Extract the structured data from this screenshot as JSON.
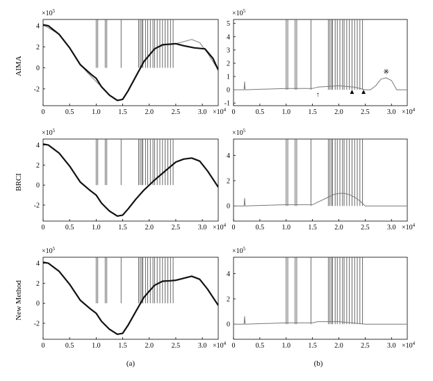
{
  "chart_data": [
    {
      "type": "line",
      "panel": "(a)",
      "row_label": "AIMA",
      "y_multiplier": "×10",
      "y_multiplier_exp": "5",
      "x_multiplier": "×10",
      "x_multiplier_exp": "4",
      "xlim": [
        0,
        3.3
      ],
      "ylim": [
        -3.6,
        4.6
      ],
      "x_ticks": [
        "0",
        "0.5",
        "1.0",
        "1.5",
        "2.0",
        "2.5",
        "3.0"
      ],
      "y_ticks": [
        "-2",
        "0",
        "2",
        "4"
      ],
      "series": [
        {
          "role": "reference-thin",
          "x": [
            0,
            0.3,
            0.5,
            0.7,
            0.9,
            1.1,
            1.25,
            1.4,
            1.5,
            1.6,
            1.75,
            1.9,
            2.1,
            2.3,
            2.5,
            2.65,
            2.8,
            2.95,
            3.1,
            3.3
          ],
          "y": [
            4.1,
            3.2,
            1.9,
            0.3,
            -0.8,
            -1.8,
            -2.6,
            -3.1,
            -3.0,
            -2.2,
            -0.8,
            0.6,
            1.8,
            2.2,
            2.3,
            2.5,
            2.7,
            2.4,
            1.4,
            -0.2
          ]
        },
        {
          "role": "estimate-thick",
          "x": [
            0,
            0.1,
            0.3,
            0.5,
            0.7,
            0.9,
            1.0,
            1.1,
            1.25,
            1.4,
            1.5,
            1.6,
            1.75,
            1.9,
            2.0,
            2.1,
            2.25,
            2.4,
            2.5,
            2.65,
            2.85,
            3.05,
            3.2,
            3.3
          ],
          "y": [
            4.1,
            4.0,
            3.2,
            1.9,
            0.3,
            -0.6,
            -1.0,
            -1.8,
            -2.6,
            -3.1,
            -3.0,
            -2.2,
            -0.8,
            0.6,
            1.2,
            1.8,
            2.2,
            2.25,
            2.3,
            2.1,
            1.9,
            1.8,
            0.9,
            -0.2
          ]
        }
      ],
      "spikes_x": [
        1.0,
        1.03,
        1.17,
        1.2,
        1.47,
        1.8,
        1.83,
        1.86,
        1.88,
        1.93,
        1.97,
        2.02,
        2.07,
        2.1,
        2.15,
        2.2,
        2.25,
        2.3,
        2.35,
        2.4,
        2.45
      ]
    },
    {
      "type": "line",
      "panel": "(b)",
      "row_label": "AIMA",
      "y_multiplier": "×10",
      "y_multiplier_exp": "5",
      "x_multiplier": "×10",
      "x_multiplier_exp": "4",
      "xlim": [
        0,
        3.3
      ],
      "ylim": [
        -1.2,
        5.3
      ],
      "x_ticks": [
        "0",
        "0.5",
        "1.0",
        "1.5",
        "2.0",
        "2.5",
        "3.0"
      ],
      "y_ticks": [
        "-1",
        "0",
        "1",
        "2",
        "3",
        "4",
        "5"
      ],
      "series": [
        {
          "role": "residual",
          "x": [
            0,
            0.2,
            0.21,
            0.22,
            1.0,
            1.5,
            1.6,
            2.0,
            2.3,
            2.5,
            2.6,
            2.7,
            2.8,
            2.9,
            3.0,
            3.1,
            3.3
          ],
          "y": [
            0,
            0,
            0.6,
            0,
            0.1,
            0.1,
            0.2,
            0.3,
            0.2,
            0,
            0,
            0.3,
            0.8,
            0.9,
            0.7,
            0,
            0
          ]
        }
      ],
      "spikes_x": [
        1.0,
        1.03,
        1.17,
        1.2,
        1.47,
        1.8,
        1.83,
        1.86,
        1.88,
        1.93,
        1.97,
        2.02,
        2.07,
        2.1,
        2.15,
        2.2,
        2.25,
        2.3,
        2.35,
        2.4,
        2.45
      ],
      "annotations": [
        {
          "symbol": "↑",
          "x": 1.6,
          "y": -0.3
        },
        {
          "symbol": "▲",
          "x": 2.25,
          "y": -0.1
        },
        {
          "symbol": "▲",
          "x": 2.47,
          "y": -0.1
        },
        {
          "symbol": "※",
          "x": 2.9,
          "y": 1.4
        }
      ]
    },
    {
      "type": "line",
      "panel": "(a)",
      "row_label": "BRCI",
      "y_multiplier": "×10",
      "y_multiplier_exp": "5",
      "x_multiplier": "×10",
      "x_multiplier_exp": "4",
      "xlim": [
        0,
        3.3
      ],
      "ylim": [
        -3.6,
        4.6
      ],
      "x_ticks": [
        "0",
        "0.5",
        "1.0",
        "1.5",
        "2.0",
        "2.5",
        "3.0"
      ],
      "y_ticks": [
        "-2",
        "0",
        "2",
        "4"
      ],
      "series": [
        {
          "role": "estimate-thick",
          "x": [
            0,
            0.1,
            0.3,
            0.5,
            0.7,
            0.9,
            1.0,
            1.1,
            1.25,
            1.4,
            1.5,
            1.6,
            1.75,
            1.9,
            2.1,
            2.3,
            2.5,
            2.65,
            2.8,
            2.95,
            3.1,
            3.3
          ],
          "y": [
            4.1,
            4.0,
            3.2,
            1.9,
            0.3,
            -0.6,
            -1.0,
            -1.8,
            -2.6,
            -3.1,
            -3.0,
            -2.4,
            -1.4,
            -0.5,
            0.5,
            1.4,
            2.3,
            2.6,
            2.7,
            2.4,
            1.4,
            -0.2
          ]
        }
      ],
      "spikes_x": [
        1.0,
        1.03,
        1.17,
        1.2,
        1.47,
        1.8,
        1.83,
        1.86,
        1.88,
        1.93,
        1.97,
        2.02,
        2.07,
        2.1,
        2.15,
        2.2,
        2.25,
        2.3,
        2.35,
        2.4,
        2.45
      ]
    },
    {
      "type": "line",
      "panel": "(b)",
      "row_label": "BRCI",
      "y_multiplier": "×10",
      "y_multiplier_exp": "5",
      "x_multiplier": "×10",
      "x_multiplier_exp": "4",
      "xlim": [
        0,
        3.3
      ],
      "ylim": [
        -1.2,
        5.3
      ],
      "x_ticks": [
        "0",
        "0.5",
        "1.0",
        "1.5",
        "2.0",
        "2.5",
        "3.0"
      ],
      "y_ticks": [
        "0",
        "2",
        "4"
      ],
      "series": [
        {
          "role": "residual",
          "x": [
            0,
            0.2,
            0.21,
            0.22,
            1.0,
            1.5,
            1.6,
            1.8,
            1.9,
            2.0,
            2.1,
            2.2,
            2.3,
            2.4,
            2.5,
            3.3
          ],
          "y": [
            0,
            0,
            0.6,
            0,
            0.1,
            0.1,
            0.3,
            0.7,
            0.9,
            1.0,
            1.0,
            0.9,
            0.7,
            0.4,
            0,
            0
          ]
        }
      ],
      "spikes_x": [
        1.0,
        1.03,
        1.17,
        1.2,
        1.47,
        1.8,
        1.83,
        1.86,
        1.88,
        1.93,
        1.97,
        2.02,
        2.07,
        2.1,
        2.15,
        2.2,
        2.25,
        2.3,
        2.35,
        2.4,
        2.45
      ]
    },
    {
      "type": "line",
      "panel": "(a)",
      "row_label": "New Method",
      "y_multiplier": "×10",
      "y_multiplier_exp": "5",
      "x_multiplier": "×10",
      "x_multiplier_exp": "4",
      "xlim": [
        0,
        3.3
      ],
      "ylim": [
        -3.6,
        4.6
      ],
      "x_ticks": [
        "0",
        "0.5",
        "1.0",
        "1.5",
        "2.0",
        "2.5",
        "3.0"
      ],
      "y_ticks": [
        "-2",
        "0",
        "2",
        "4"
      ],
      "series": [
        {
          "role": "estimate-thick",
          "x": [
            0,
            0.1,
            0.3,
            0.5,
            0.7,
            0.9,
            1.0,
            1.1,
            1.25,
            1.4,
            1.5,
            1.6,
            1.75,
            1.9,
            2.0,
            2.1,
            2.25,
            2.4,
            2.5,
            2.65,
            2.8,
            2.95,
            3.1,
            3.3
          ],
          "y": [
            4.1,
            4.0,
            3.2,
            1.9,
            0.3,
            -0.6,
            -1.0,
            -1.8,
            -2.6,
            -3.1,
            -3.0,
            -2.2,
            -0.8,
            0.6,
            1.2,
            1.8,
            2.2,
            2.25,
            2.3,
            2.5,
            2.7,
            2.4,
            1.4,
            -0.2
          ]
        }
      ],
      "spikes_x": [
        1.0,
        1.03,
        1.17,
        1.2,
        1.47,
        1.8,
        1.83,
        1.86,
        1.88,
        1.93,
        1.97,
        2.02,
        2.07,
        2.1,
        2.15,
        2.2,
        2.25,
        2.3,
        2.35,
        2.4,
        2.45
      ]
    },
    {
      "type": "line",
      "panel": "(b)",
      "row_label": "New Method",
      "y_multiplier": "×10",
      "y_multiplier_exp": "5",
      "x_multiplier": "×10",
      "x_multiplier_exp": "4",
      "xlim": [
        0,
        3.3
      ],
      "ylim": [
        -1.2,
        5.3
      ],
      "x_ticks": [
        "0",
        "0.5",
        "1.0",
        "1.5",
        "2.0",
        "2.5",
        "3.0"
      ],
      "y_ticks": [
        "0",
        "2",
        "4"
      ],
      "series": [
        {
          "role": "residual",
          "x": [
            0,
            0.2,
            0.21,
            0.22,
            1.0,
            1.5,
            1.6,
            2.0,
            2.5,
            3.3
          ],
          "y": [
            0,
            0,
            0.6,
            0,
            0.1,
            0.1,
            0.2,
            0.2,
            0,
            0
          ]
        }
      ],
      "spikes_x": [
        1.0,
        1.03,
        1.17,
        1.2,
        1.47,
        1.8,
        1.83,
        1.86,
        1.88,
        1.93,
        1.97,
        2.02,
        2.07,
        2.1,
        2.15,
        2.2,
        2.25,
        2.3,
        2.35,
        2.4,
        2.45
      ]
    }
  ],
  "panel_labels": [
    "(a)",
    "(b)"
  ],
  "row_labels": [
    "AIMA",
    "BRCI",
    "New Method"
  ],
  "colors": {
    "thick": "#111111",
    "thin": "#777777",
    "spike": "#555555"
  }
}
